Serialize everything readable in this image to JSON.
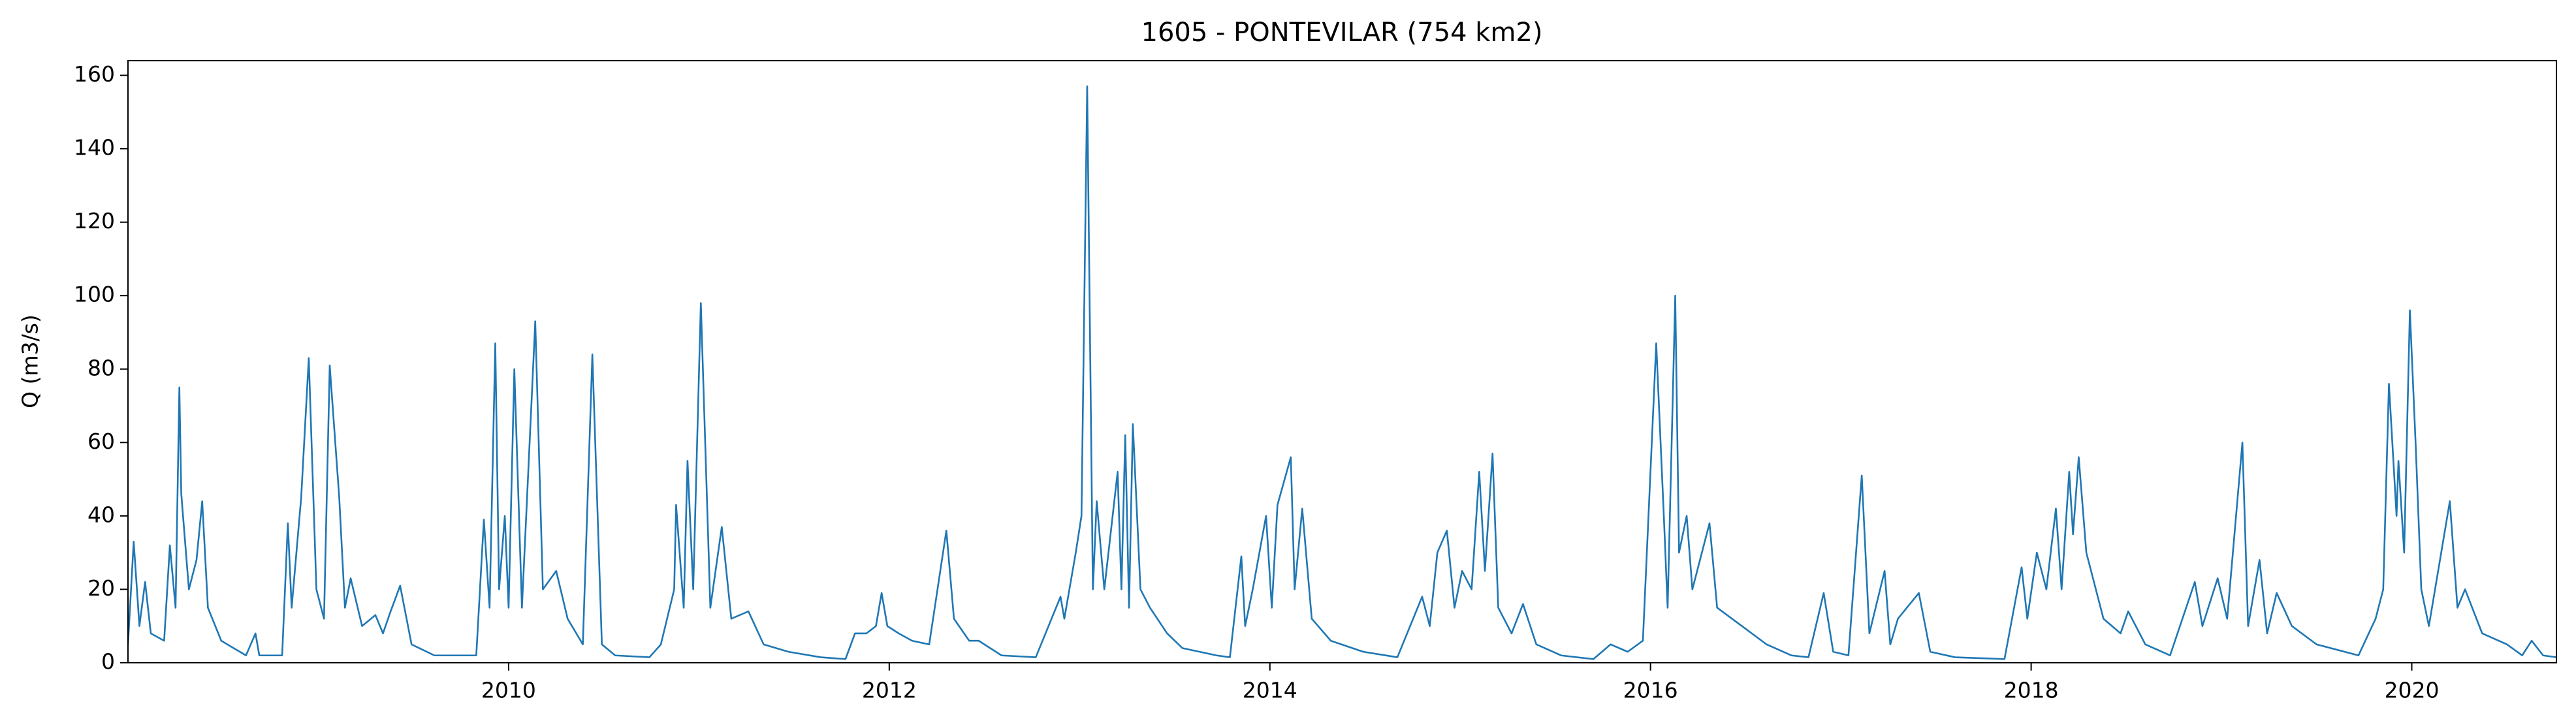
{
  "chart_data": {
    "type": "line",
    "title": "1605 - PONTEVILAR (754 km2)",
    "ylabel": "Q (m3/s)",
    "color": "#1f77b4",
    "xlim": [
      2008.0,
      2020.76
    ],
    "xticks": [
      2010,
      2012,
      2014,
      2016,
      2018,
      2020
    ],
    "ylim": [
      0,
      164
    ],
    "yticks": [
      0,
      20,
      40,
      60,
      80,
      100,
      120,
      140,
      160
    ],
    "x": [
      2008.0,
      2008.03,
      2008.06,
      2008.09,
      2008.12,
      2008.19,
      2008.22,
      2008.25,
      2008.27,
      2008.28,
      2008.32,
      2008.36,
      2008.39,
      2008.42,
      2008.49,
      2008.62,
      2008.67,
      2008.69,
      2008.81,
      2008.84,
      2008.86,
      2008.91,
      2008.95,
      2008.99,
      2009.03,
      2009.06,
      2009.11,
      2009.14,
      2009.17,
      2009.23,
      2009.3,
      2009.34,
      2009.38,
      2009.43,
      2009.49,
      2009.61,
      2009.83,
      2009.87,
      2009.9,
      2009.93,
      2009.95,
      2009.98,
      2010.0,
      2010.03,
      2010.07,
      2010.14,
      2010.18,
      2010.25,
      2010.31,
      2010.39,
      2010.44,
      2010.49,
      2010.56,
      2010.74,
      2010.8,
      2010.87,
      2010.88,
      2010.92,
      2010.94,
      2010.97,
      2011.01,
      2011.06,
      2011.12,
      2011.17,
      2011.26,
      2011.34,
      2011.47,
      2011.64,
      2011.77,
      2011.82,
      2011.88,
      2011.93,
      2011.96,
      2011.99,
      2012.05,
      2012.12,
      2012.21,
      2012.3,
      2012.34,
      2012.42,
      2012.47,
      2012.59,
      2012.77,
      2012.9,
      2012.92,
      2012.98,
      2013.01,
      2013.04,
      2013.07,
      2013.09,
      2013.13,
      2013.2,
      2013.22,
      2013.24,
      2013.26,
      2013.28,
      2013.32,
      2013.37,
      2013.46,
      2013.54,
      2013.72,
      2013.79,
      2013.85,
      2013.87,
      2013.91,
      2013.98,
      2014.01,
      2014.04,
      2014.11,
      2014.13,
      2014.17,
      2014.22,
      2014.32,
      2014.49,
      2014.67,
      2014.8,
      2014.84,
      2014.88,
      2014.93,
      2014.97,
      2015.01,
      2015.06,
      2015.1,
      2015.13,
      2015.17,
      2015.2,
      2015.27,
      2015.33,
      2015.4,
      2015.53,
      2015.7,
      2015.79,
      2015.88,
      2015.96,
      2016.03,
      2016.07,
      2016.09,
      2016.13,
      2016.15,
      2016.19,
      2016.22,
      2016.31,
      2016.35,
      2016.48,
      2016.61,
      2016.74,
      2016.83,
      2016.91,
      2016.96,
      2017.04,
      2017.11,
      2017.15,
      2017.23,
      2017.26,
      2017.3,
      2017.41,
      2017.47,
      2017.6,
      2017.86,
      2017.95,
      2017.98,
      2018.03,
      2018.08,
      2018.13,
      2018.16,
      2018.2,
      2018.22,
      2018.25,
      2018.29,
      2018.38,
      2018.47,
      2018.51,
      2018.6,
      2018.73,
      2018.86,
      2018.9,
      2018.98,
      2019.03,
      2019.11,
      2019.14,
      2019.2,
      2019.24,
      2019.29,
      2019.37,
      2019.5,
      2019.72,
      2019.81,
      2019.85,
      2019.88,
      2019.92,
      2019.93,
      2019.96,
      2019.99,
      2020.02,
      2020.05,
      2020.09,
      2020.2,
      2020.24,
      2020.28,
      2020.37,
      2020.5,
      2020.58,
      2020.63,
      2020.69,
      2020.76
    ],
    "values": [
      5,
      33,
      10,
      22,
      8,
      6,
      32,
      15,
      75,
      46,
      20,
      28,
      44,
      15,
      6,
      2,
      8,
      2,
      2,
      38,
      15,
      45,
      83,
      20,
      12,
      81,
      45,
      15,
      23,
      10,
      13,
      8,
      14,
      21,
      5,
      2,
      2,
      39,
      15,
      87,
      20,
      40,
      15,
      80,
      15,
      93,
      20,
      25,
      12,
      5,
      84,
      5,
      2,
      1.5,
      5,
      20,
      43,
      15,
      55,
      20,
      98,
      15,
      37,
      12,
      14,
      5,
      3,
      1.5,
      1,
      8,
      8,
      10,
      19,
      10,
      8,
      6,
      5,
      36,
      12,
      6,
      6,
      2,
      1.5,
      18,
      12,
      30,
      40,
      157,
      20,
      44,
      20,
      52,
      20,
      62,
      15,
      65,
      20,
      15,
      8,
      4,
      2,
      1.5,
      29,
      10,
      20,
      40,
      15,
      43,
      56,
      20,
      42,
      12,
      6,
      3,
      1.5,
      18,
      10,
      30,
      36,
      15,
      25,
      20,
      52,
      25,
      57,
      15,
      8,
      16,
      5,
      2,
      1,
      5,
      3,
      6,
      87,
      40,
      15,
      100,
      30,
      40,
      20,
      38,
      15,
      10,
      5,
      2,
      1.5,
      19,
      3,
      2,
      51,
      8,
      25,
      5,
      12,
      19,
      3,
      1.5,
      1,
      26,
      12,
      30,
      20,
      42,
      20,
      52,
      35,
      56,
      30,
      12,
      8,
      14,
      5,
      2,
      22,
      10,
      23,
      12,
      60,
      10,
      28,
      8,
      19,
      10,
      5,
      2,
      12,
      20,
      76,
      40,
      55,
      30,
      96,
      60,
      20,
      10,
      44,
      15,
      20,
      8,
      5,
      2,
      6,
      2,
      1.5
    ]
  }
}
